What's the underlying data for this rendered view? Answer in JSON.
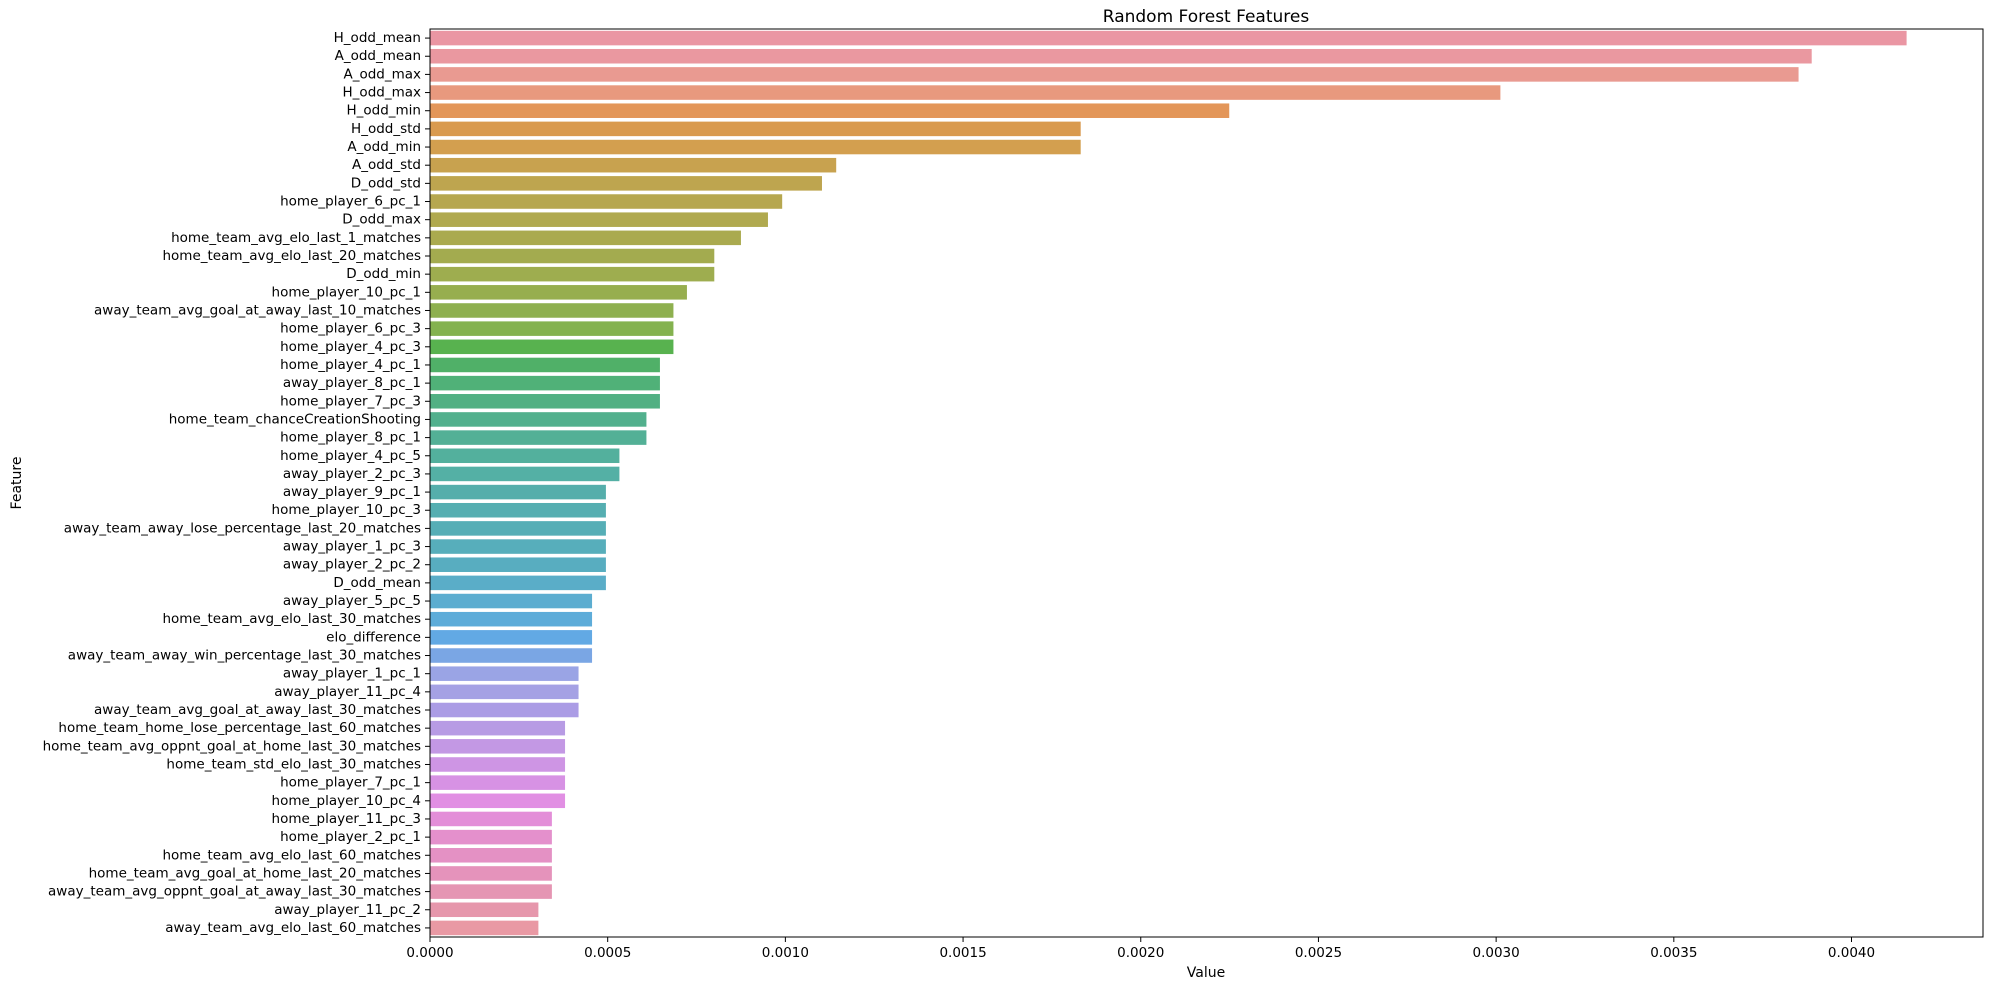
{
  "chart_data": {
    "type": "bar",
    "orientation": "horizontal",
    "title": "Random Forest Features",
    "xlabel": "Value",
    "ylabel": "Feature",
    "xlim": [
      0,
      0.00437
    ],
    "xticks": [
      0.0,
      0.0005,
      0.001,
      0.0015,
      0.002,
      0.0025,
      0.003,
      0.0035,
      0.004
    ],
    "xtick_labels": [
      "0.0000",
      "0.0005",
      "0.0010",
      "0.0015",
      "0.0020",
      "0.0025",
      "0.0030",
      "0.0035",
      "0.0040"
    ],
    "grid": false,
    "legend": "none",
    "categories": [
      "H_odd_mean",
      "A_odd_mean",
      "A_odd_max",
      "H_odd_max",
      "H_odd_min",
      "H_odd_std",
      "A_odd_min",
      "A_odd_std",
      "D_odd_std",
      "home_player_6_pc_1",
      "D_odd_max",
      "home_team_avg_elo_last_1_matches",
      "home_team_avg_elo_last_20_matches",
      "D_odd_min",
      "home_player_10_pc_1",
      "away_team_avg_goal_at_away_last_10_matches",
      "home_player_6_pc_3",
      "home_player_4_pc_3",
      "home_player_4_pc_1",
      "away_player_8_pc_1",
      "home_player_7_pc_3",
      "home_team_chanceCreationShooting",
      "home_player_8_pc_1",
      "home_player_4_pc_5",
      "away_player_2_pc_3",
      "away_player_9_pc_1",
      "home_player_10_pc_3",
      "away_team_away_lose_percentage_last_20_matches",
      "away_player_1_pc_3",
      "away_player_2_pc_2",
      "D_odd_mean",
      "away_player_5_pc_5",
      "home_team_avg_elo_last_30_matches",
      "elo_difference",
      "away_team_away_win_percentage_last_30_matches",
      "away_player_1_pc_1",
      "away_player_11_pc_4",
      "away_team_avg_goal_at_away_last_30_matches",
      "home_team_home_lose_percentage_last_60_matches",
      "home_team_avg_oppnt_goal_at_home_last_30_matches",
      "home_team_std_elo_last_30_matches",
      "home_player_7_pc_1",
      "home_player_10_pc_4",
      "home_player_11_pc_3",
      "home_player_2_pc_1",
      "home_team_avg_elo_last_60_matches",
      "home_team_avg_goal_at_home_last_20_matches",
      "away_team_avg_oppnt_goal_at_away_last_30_matches",
      "away_player_11_pc_2",
      "away_team_avg_elo_last_60_matches"
    ],
    "values": [
      0.004155,
      0.003888,
      0.003851,
      0.003012,
      0.002249,
      0.001831,
      0.001831,
      0.001143,
      0.001103,
      0.000991,
      0.000951,
      0.000875,
      0.0008,
      0.0008,
      0.000723,
      0.000685,
      0.000685,
      0.000685,
      0.000647,
      0.000647,
      0.000647,
      0.000609,
      0.000609,
      0.000533,
      0.000533,
      0.000495,
      0.000495,
      0.000495,
      0.000495,
      0.000495,
      0.000495,
      0.000456,
      0.000456,
      0.000456,
      0.000456,
      0.000418,
      0.000418,
      0.000418,
      0.00038,
      0.00038,
      0.00038,
      0.00038,
      0.00038,
      0.000343,
      0.000343,
      0.000343,
      0.000343,
      0.000343,
      0.000305,
      0.000305
    ],
    "colors": [
      "#ea96a3",
      "#ea98a0",
      "#e99a91",
      "#e8997e",
      "#e39659",
      "#d99a4e",
      "#d39f4f",
      "#c8a24f",
      "#bea54f",
      "#b6a74f",
      "#b0a94f",
      "#aaaa4f",
      "#a3ab4f",
      "#9ead4f",
      "#97ae4f",
      "#8eb04f",
      "#84b24f",
      "#58b24f",
      "#50b068",
      "#50b178",
      "#51b083",
      "#52b08d",
      "#53b096",
      "#53b09d",
      "#54b0a5",
      "#55aeab",
      "#55aeb1",
      "#56aeb6",
      "#57aebb",
      "#58adc0",
      "#5aadc8",
      "#5cadd0",
      "#5dacd9",
      "#62a9e4",
      "#7aa6e4",
      "#9aa4e5",
      "#a5a1e4",
      "#ab9ce5",
      "#b79be4",
      "#c398e4",
      "#ce95e4",
      "#d792e4",
      "#e18fe3",
      "#e38ed8",
      "#e490cc",
      "#e491c4",
      "#e593bb",
      "#e595b3",
      "#e697ac",
      "#e999a4"
    ]
  }
}
